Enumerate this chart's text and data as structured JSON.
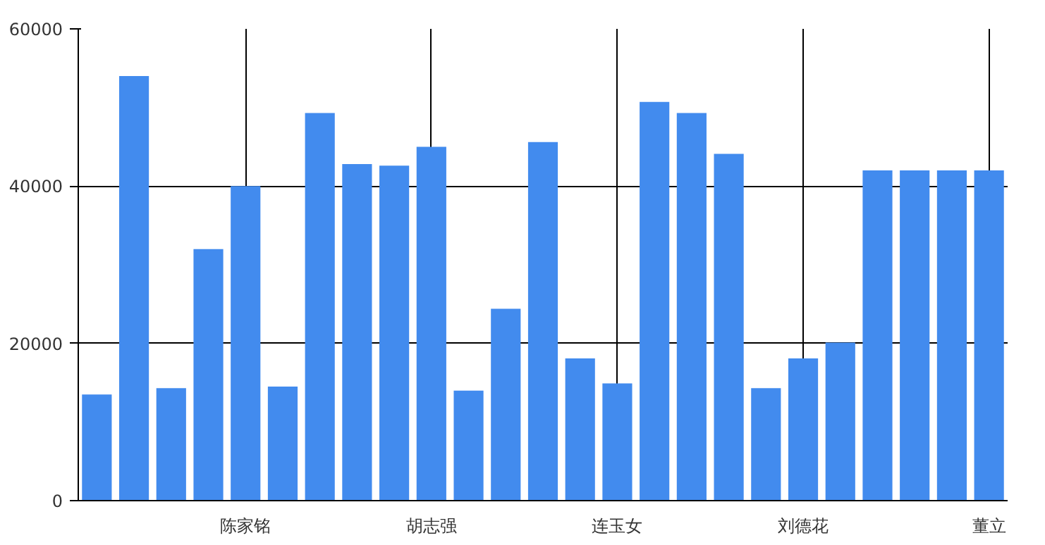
{
  "chart_data": {
    "type": "bar",
    "categories": [
      null,
      null,
      null,
      null,
      "陈家铭",
      null,
      null,
      null,
      null,
      "胡志强",
      null,
      null,
      null,
      null,
      "连玉女",
      null,
      null,
      null,
      null,
      "刘德花",
      null,
      null,
      null,
      null,
      "董立"
    ],
    "values": [
      13500,
      54000,
      14300,
      32000,
      40000,
      14500,
      49300,
      42800,
      42600,
      45000,
      14000,
      24400,
      45600,
      18100,
      14900,
      50700,
      49300,
      44100,
      14300,
      18100,
      20100,
      42000,
      42000,
      42000,
      42000
    ],
    "color": "#428bee",
    "ylim": [
      0,
      60000
    ],
    "yticks": [
      0,
      20000,
      40000,
      60000
    ],
    "grid": true
  }
}
